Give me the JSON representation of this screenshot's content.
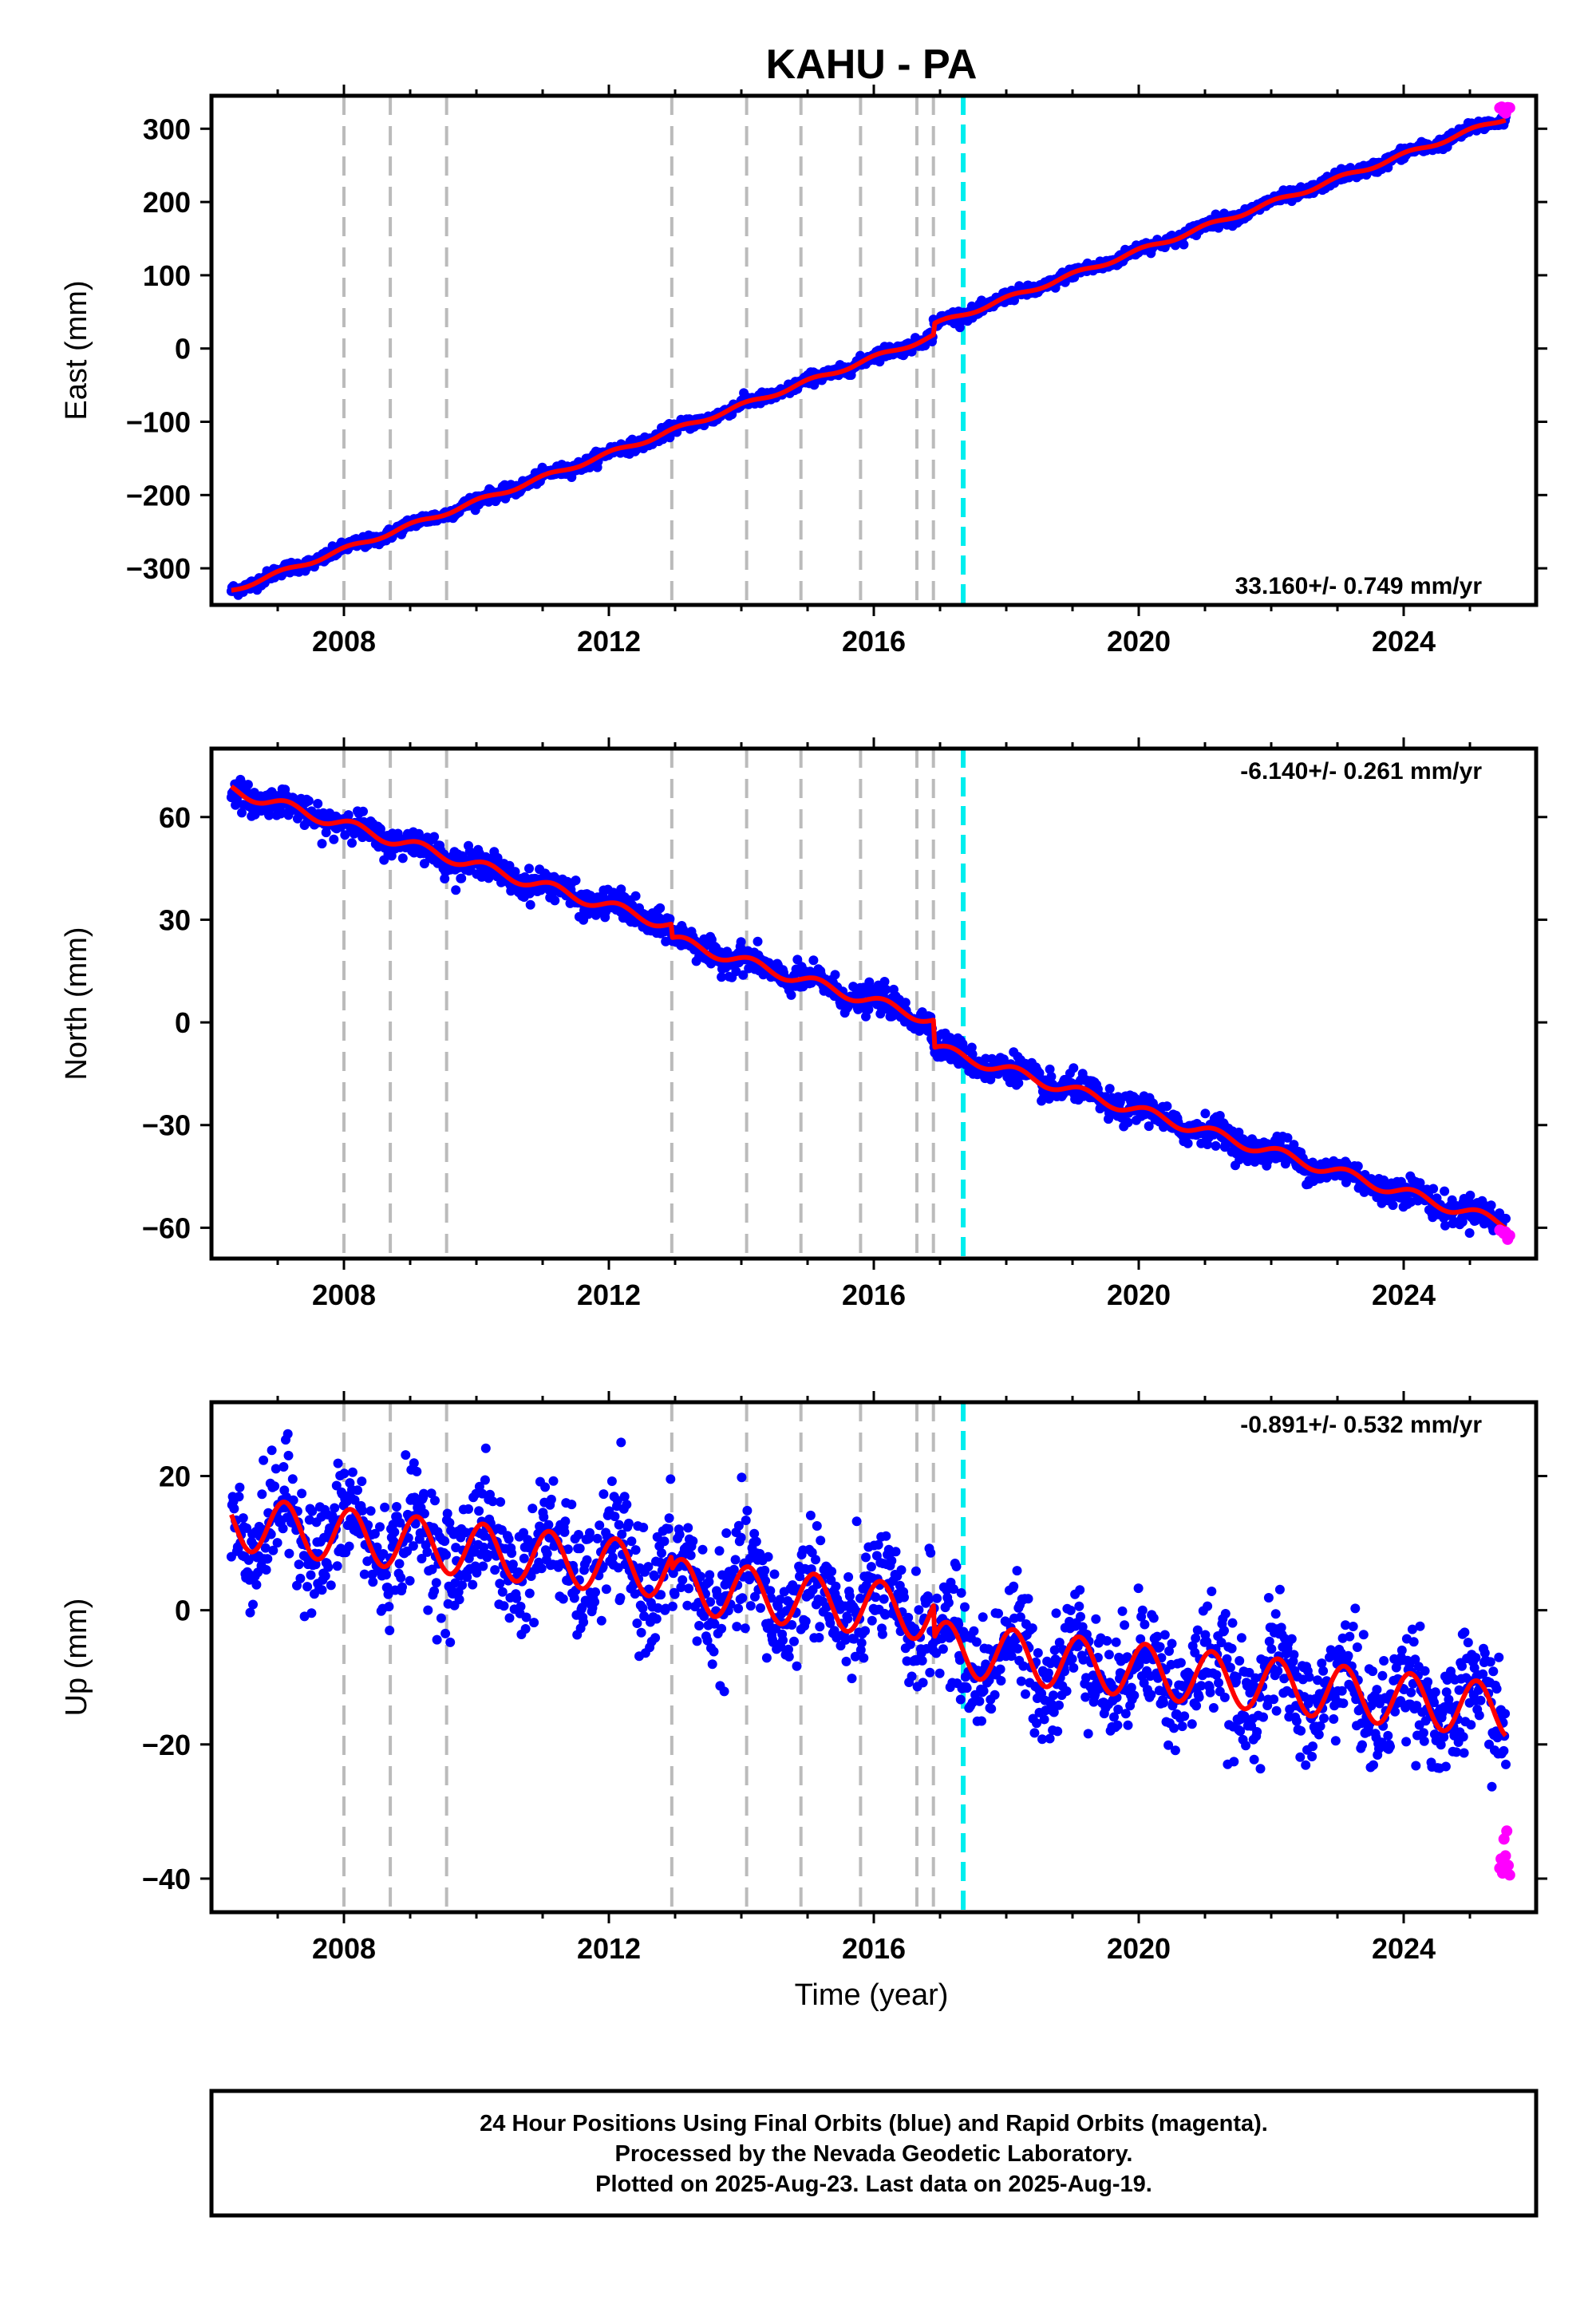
{
  "title": "KAHU - PA",
  "xlabel": "Time (year)",
  "footer": {
    "line1": "24 Hour Positions Using Final Orbits (blue) and Rapid Orbits (magenta).",
    "line2": "Processed by the Nevada Geodetic Laboratory.",
    "line3": "Plotted on 2025-Aug-23. Last data on 2025-Aug-19."
  },
  "colors": {
    "final": "#0000ff",
    "rapid": "#ff00ff",
    "model": "#ff0000",
    "event": "#bbbbbb",
    "equipment": "#00eeee"
  },
  "chart_data": [
    {
      "type": "scatter",
      "ylabel": "East (mm)",
      "rate": "33.160+/- 0.749 mm/yr",
      "xlim": [
        2006.0,
        2026.0
      ],
      "ylim": [
        -350,
        345
      ],
      "xticks": [
        2008,
        2012,
        2016,
        2020,
        2024
      ],
      "yticks": [
        -300,
        -200,
        -100,
        0,
        100,
        200,
        300
      ],
      "event_lines": [
        2008.0,
        2008.7,
        2009.55,
        2012.95,
        2014.08,
        2014.9,
        2015.8,
        2016.65,
        2016.9
      ],
      "equipment_line": 2017.35,
      "trend": {
        "start": 2006.3,
        "end": 2025.55,
        "y_start": -330,
        "y_end": 315
      },
      "offsets": [
        {
          "t": 2016.9,
          "dy": 15
        }
      ],
      "seasonal": {
        "amplitude": 3,
        "phase": 0.2
      },
      "noise": 4,
      "rapid": {
        "start": 2025.45,
        "end": 2025.6,
        "y": 325,
        "count": 6
      }
    },
    {
      "type": "scatter",
      "ylabel": "North (mm)",
      "rate": "-6.140+/- 0.261 mm/yr",
      "xlim": [
        2006.0,
        2026.0
      ],
      "ylim": [
        -69,
        80
      ],
      "xticks": [
        2008,
        2012,
        2016,
        2020,
        2024
      ],
      "yticks": [
        -60,
        -30,
        0,
        30,
        60
      ],
      "event_lines": [
        2008.0,
        2008.7,
        2009.55,
        2012.95,
        2014.08,
        2014.9,
        2015.8,
        2016.65,
        2016.9
      ],
      "equipment_line": 2017.35,
      "trend": {
        "start": 2006.3,
        "end": 2025.55,
        "y_start": 68,
        "y_end": -59
      },
      "offsets": [
        {
          "t": 2016.9,
          "dy": -8
        },
        {
          "t": 2012.95,
          "dy": -4
        }
      ],
      "seasonal": {
        "amplitude": 1.6,
        "phase": 0.1
      },
      "noise": 2,
      "rapid": {
        "start": 2025.45,
        "end": 2025.6,
        "y": -62,
        "count": 6
      }
    },
    {
      "type": "scatter",
      "ylabel": "Up (mm)",
      "rate": "-0.891+/- 0.532 mm/yr",
      "xlim": [
        2006.0,
        2026.0
      ],
      "ylim": [
        -45,
        31
      ],
      "xticks": [
        2008,
        2012,
        2016,
        2020,
        2024
      ],
      "yticks": [
        -40,
        -20,
        0,
        20
      ],
      "event_lines": [
        2008.0,
        2008.7,
        2009.55,
        2012.95,
        2014.08,
        2014.9,
        2015.8,
        2016.65,
        2016.9
      ],
      "equipment_line": 2017.35,
      "trend": {
        "start": 2006.3,
        "end": 2025.55,
        "y_start": 13,
        "y_end": -15
      },
      "offsets": [
        {
          "t": 2016.9,
          "dy": -5
        },
        {
          "t": 2012.95,
          "dy": -2
        }
      ],
      "seasonal": {
        "amplitude": 4,
        "phase": 0.15
      },
      "noise": 4.2,
      "rapid": {
        "start": 2025.45,
        "end": 2025.6,
        "y": -35,
        "count": 8
      }
    }
  ]
}
